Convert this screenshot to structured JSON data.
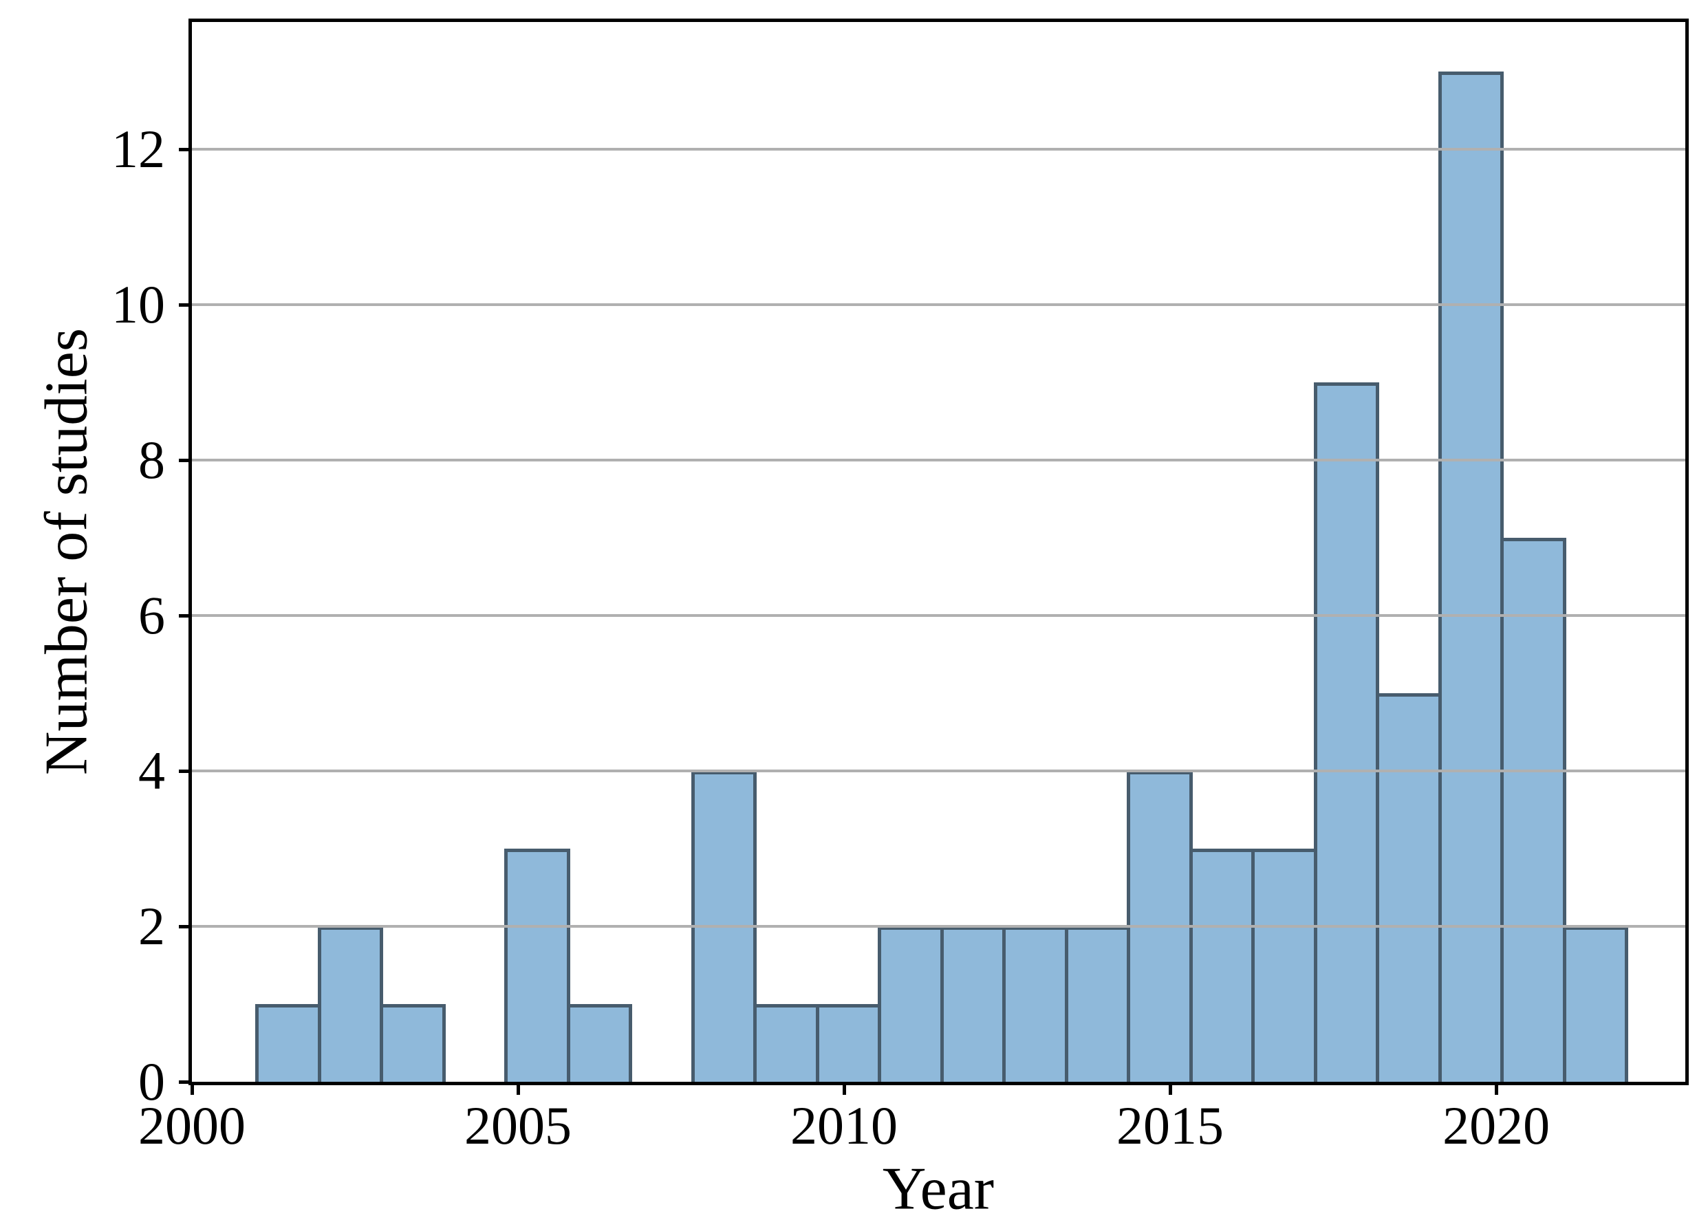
{
  "figure": {
    "xlabel": "Year",
    "ylabel": "Number of studies"
  },
  "chart_data": {
    "type": "bar",
    "subtype": "histogram",
    "title": "",
    "xlabel": "Year",
    "ylabel": "Number of studies",
    "categories": [
      2001,
      2002,
      2003,
      2004,
      2005,
      2006,
      2007,
      2008,
      2009,
      2010,
      2011,
      2012,
      2013,
      2014,
      2015,
      2016,
      2017,
      2018,
      2019,
      2020,
      2021,
      2022
    ],
    "values": [
      1,
      2,
      1,
      0,
      3,
      1,
      0,
      4,
      1,
      1,
      2,
      2,
      2,
      2,
      4,
      3,
      3,
      9,
      5,
      13,
      7,
      2
    ],
    "bin_start": 2001,
    "bin_end": 2022,
    "xlim": [
      2000,
      2022.9
    ],
    "ylim": [
      0,
      13.64
    ],
    "x_ticks": [
      2000,
      2005,
      2010,
      2015,
      2020
    ],
    "y_ticks": [
      0,
      2,
      4,
      6,
      8,
      10,
      12
    ],
    "grid": "horizontal",
    "legend": "none",
    "colors": {
      "bar_fill": "#8fb9da",
      "bar_edge": "rgba(0,0,0,0.5)",
      "gridline": "#b0b0b0",
      "spine": "#000000",
      "text": "#000000"
    }
  }
}
